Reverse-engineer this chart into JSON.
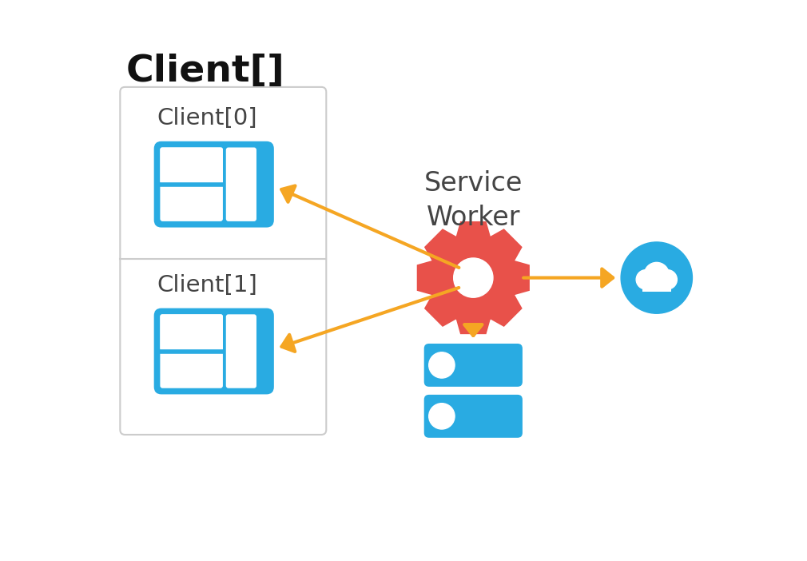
{
  "bg_color": "#ffffff",
  "title_text": "Client[]",
  "title_fontsize": 34,
  "title_fontweight": "bold",
  "label_color": "#444444",
  "client_box_color": "#cccccc",
  "client0_label": "Client[0]",
  "client1_label": "Client[1]",
  "client_label_fontsize": 21,
  "browser_blue": "#29abe2",
  "sw_label": "Service\nWorker",
  "sw_fontsize": 24,
  "gear_color": "#e8514a",
  "cloud_color": "#29abe2",
  "db_color": "#29abe2",
  "arrow_color": "#f5a623",
  "arrow_lw": 3.0
}
